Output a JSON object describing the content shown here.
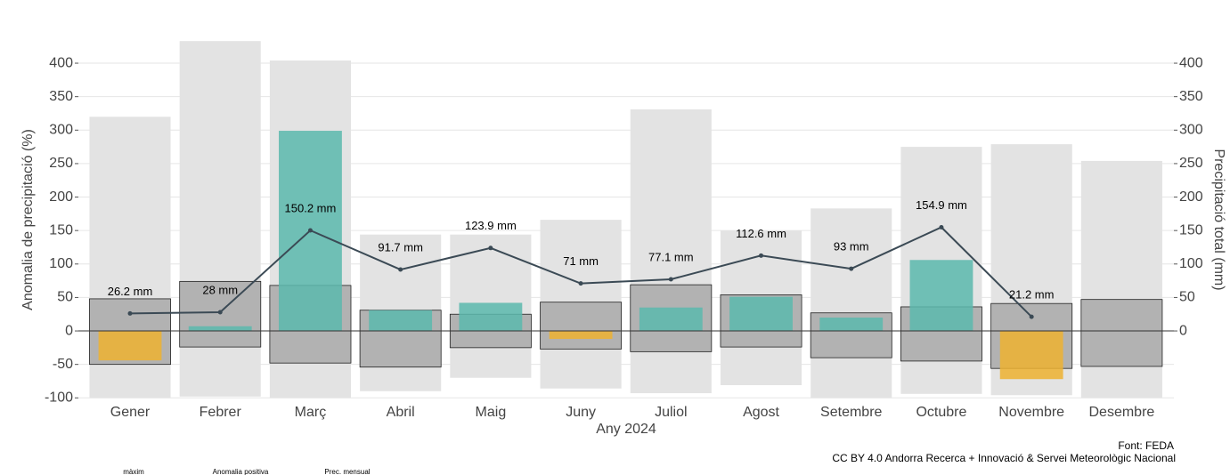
{
  "chart_data": {
    "type": "bar",
    "x_label": "Any 2024",
    "y_label": "Anomalia de precipitació (%)",
    "y2_label": "Precipitació total (mm)",
    "caption": [
      "Font: FEDA",
      "CC BY 4.0 Andorra Recerca + Innovació & Servei Meteorològic Nacional"
    ],
    "categories": [
      "Gener",
      "Febrer",
      "Març",
      "Abril",
      "Maig",
      "Juny",
      "Juliol",
      "Agost",
      "Setembre",
      "Octubre",
      "Novembre",
      "Desembre"
    ],
    "ylim": [
      -100,
      435
    ],
    "yticks": [
      -100,
      -50,
      0,
      50,
      100,
      150,
      200,
      250,
      300,
      350,
      400
    ],
    "y2lim": [
      -100,
      435
    ],
    "y2ticks": [
      0,
      50,
      100,
      150,
      200,
      250,
      300,
      350,
      400
    ],
    "grid": true,
    "series": [
      {
        "name": "màxim",
        "color": "#e3e3e3",
        "high": [
          320,
          433,
          404,
          144,
          144,
          166,
          331,
          150,
          183,
          275,
          279,
          254
        ],
        "low": [
          -100,
          -98,
          -100,
          -90,
          -70,
          -86,
          -93,
          -81,
          -100,
          -94,
          -96,
          -100
        ]
      },
      {
        "color": "#b2b2b2",
        "high": [
          48,
          74,
          68,
          31,
          25,
          43,
          69,
          54,
          27,
          36,
          41,
          47
        ],
        "low": [
          -50,
          -24,
          -48,
          -54,
          -25,
          -27,
          -31,
          -24,
          -40,
          -45,
          -56,
          -53
        ]
      },
      {
        "name": "Anomalia positiva",
        "color": "#5bb8ad",
        "negative_color": "#edb230",
        "values": [
          -44,
          7,
          299,
          31,
          42,
          -12,
          35,
          51,
          20,
          106,
          -72,
          null
        ]
      },
      {
        "name": "Prec. mensual",
        "type": "line",
        "axis": "y2",
        "color": "#3b4a55",
        "values": [
          26.2,
          28,
          150.2,
          91.7,
          123.9,
          71,
          77.1,
          112.6,
          93,
          154.9,
          21.2,
          null
        ],
        "value_labels": [
          "26.2 mm",
          "28 mm",
          "150.2 mm",
          "91.7 mm",
          "123.9 mm",
          "71 mm",
          "77.1 mm",
          "112.6 mm",
          "93 mm",
          "154.9 mm",
          "21.2 mm",
          null
        ]
      }
    ]
  }
}
